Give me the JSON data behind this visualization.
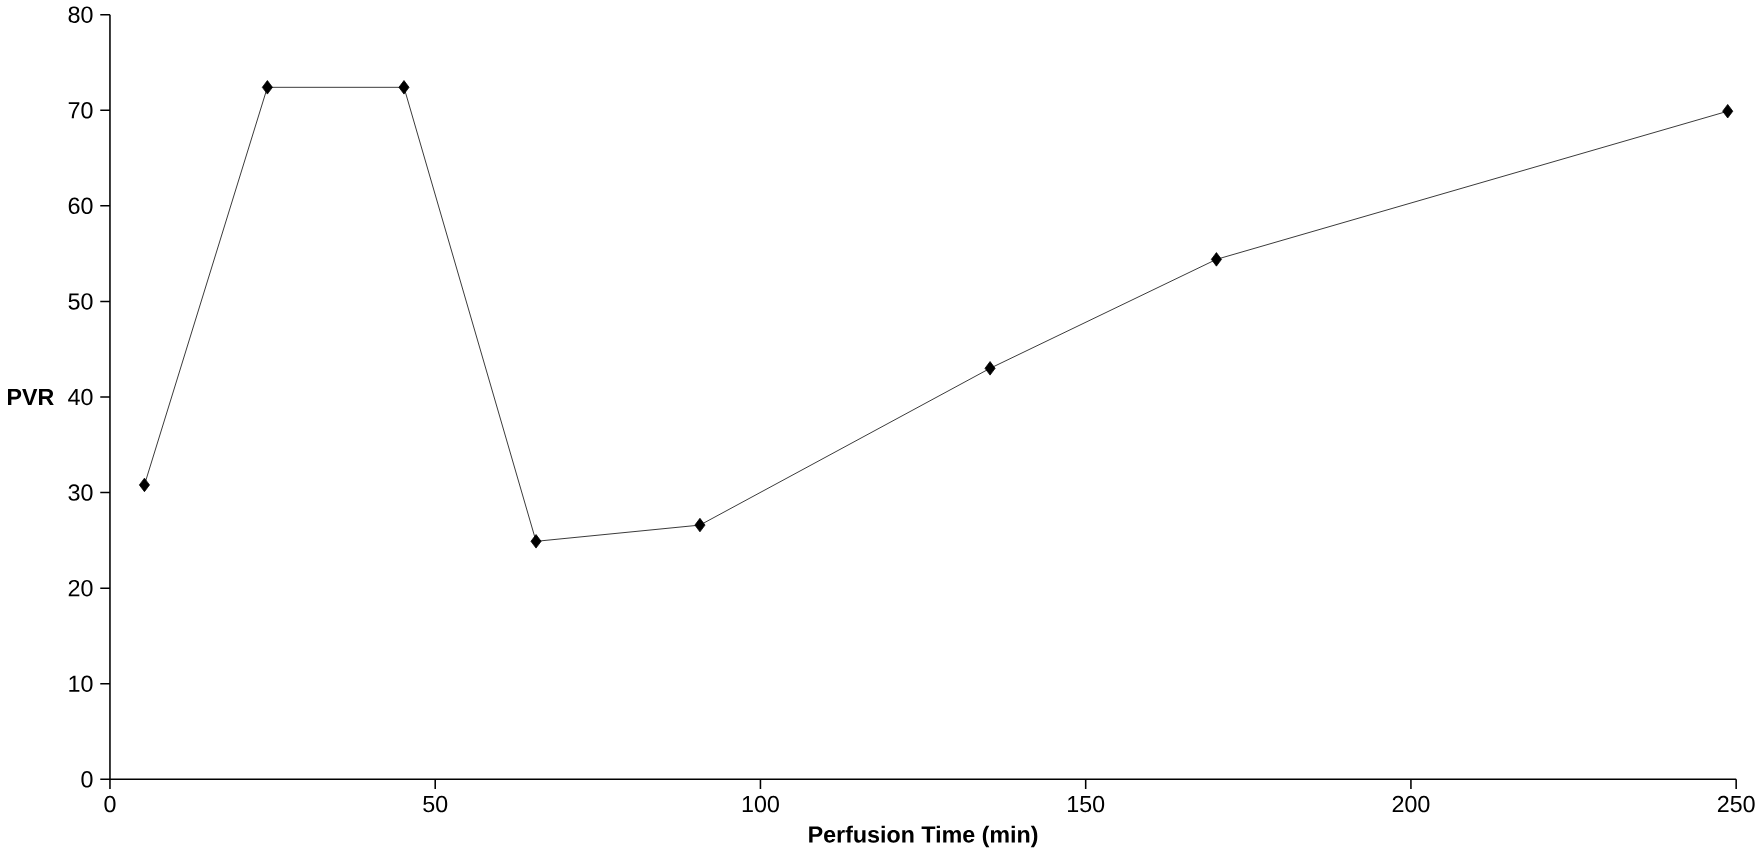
{
  "chart_data": {
    "type": "line",
    "xlabel": "Perfusion Time (min)",
    "ylabel": "PVR",
    "x": [
      5.3,
      24.2,
      45.2,
      65.5,
      90.7,
      135.3,
      170.1,
      248.7
    ],
    "series": [
      {
        "color": "#000000",
        "values": [
          30.8,
          72.4,
          72.4,
          24.9,
          26.6,
          43.0,
          54.4,
          69.9
        ]
      }
    ],
    "xlim": [
      0,
      250
    ],
    "ylim": [
      0,
      80
    ],
    "xticks": [
      0,
      50,
      100,
      150,
      200,
      250
    ],
    "yticks": [
      0,
      10,
      20,
      30,
      40,
      50,
      60,
      70,
      80
    ],
    "marker": "diamond",
    "line_style": "solid"
  }
}
